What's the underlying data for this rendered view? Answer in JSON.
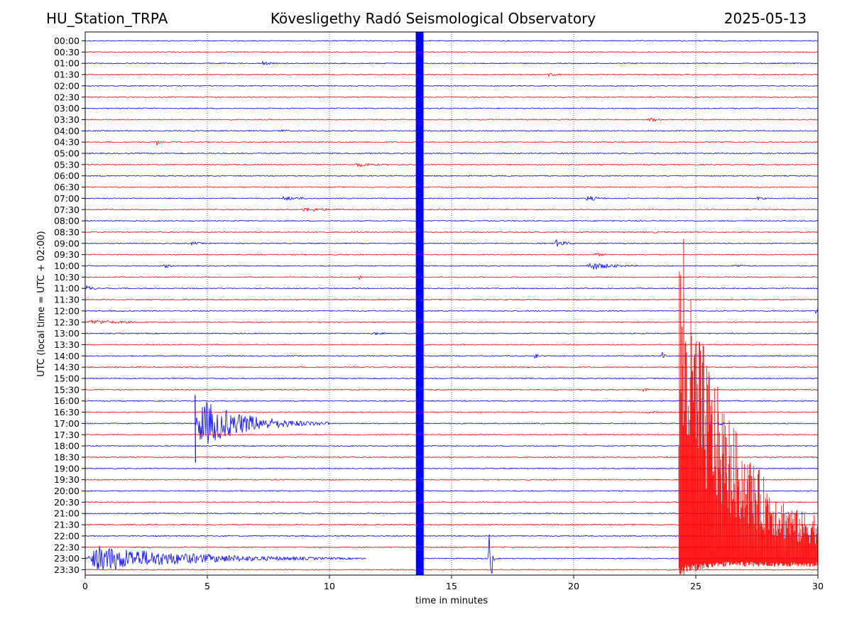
{
  "header": {
    "station": "HU_Station_TRPA",
    "observatory": "Kövesligethy Radó Seismological Observatory",
    "date": "2025-05-13"
  },
  "chart_data": {
    "type": "line",
    "xlabel": "time in minutes",
    "ylabel": "UTC (local time = UTC + 02:00)",
    "xlim": [
      0,
      30
    ],
    "x_ticks": [
      "0",
      "5",
      "10",
      "15",
      "20",
      "25",
      "30"
    ],
    "y_ticks": [
      "00:00",
      "00:30",
      "01:00",
      "01:30",
      "02:00",
      "02:30",
      "03:00",
      "03:30",
      "04:00",
      "04:30",
      "05:00",
      "05:30",
      "06:00",
      "06:30",
      "07:00",
      "07:30",
      "08:00",
      "08:30",
      "09:00",
      "09:30",
      "10:00",
      "10:30",
      "11:00",
      "11:30",
      "12:00",
      "12:30",
      "13:00",
      "13:30",
      "14:00",
      "14:30",
      "15:00",
      "15:30",
      "16:00",
      "16:30",
      "17:00",
      "17:30",
      "18:00",
      "18:30",
      "19:00",
      "19:30",
      "20:00",
      "20:30",
      "21:00",
      "21:30",
      "22:00",
      "22:30",
      "23:00",
      "23:30"
    ],
    "grid": "vertical dotted",
    "colors": {
      "even_trace": "#0000ff",
      "odd_trace": "#ff0000"
    },
    "events": [
      {
        "row": 2,
        "t": 7.2,
        "amp": 4,
        "dur": 1.0
      },
      {
        "row": 3,
        "t": 18.9,
        "amp": 5,
        "dur": 1.0
      },
      {
        "row": 7,
        "t": 23.0,
        "amp": 4,
        "dur": 1.5
      },
      {
        "row": 8,
        "t": 7.9,
        "amp": 3,
        "dur": 1.2
      },
      {
        "row": 9,
        "t": 2.9,
        "amp": 6,
        "dur": 0.2
      },
      {
        "row": 11,
        "t": 11.0,
        "amp": 4,
        "dur": 2.5
      },
      {
        "row": 14,
        "t": 8.0,
        "amp": 4,
        "dur": 2.5
      },
      {
        "row": 14,
        "t": 20.5,
        "amp": 5,
        "dur": 1.5
      },
      {
        "row": 14,
        "t": 27.5,
        "amp": 3,
        "dur": 1.0
      },
      {
        "row": 15,
        "t": 8.8,
        "amp": 4,
        "dur": 3.5
      },
      {
        "row": 17,
        "t": 23.2,
        "amp": 2,
        "dur": 1.0
      },
      {
        "row": 18,
        "t": 4.3,
        "amp": 3,
        "dur": 1.5
      },
      {
        "row": 18,
        "t": 19.2,
        "amp": 6,
        "dur": 1.5
      },
      {
        "row": 19,
        "t": 20.8,
        "amp": 3,
        "dur": 1.5
      },
      {
        "row": 20,
        "t": 3.2,
        "amp": 4,
        "dur": 1.0
      },
      {
        "row": 20,
        "t": 20.5,
        "amp": 7,
        "dur": 3.0
      },
      {
        "row": 20,
        "t": 26.5,
        "amp": 3,
        "dur": 1.5
      },
      {
        "row": 21,
        "t": 11.2,
        "amp": 5,
        "dur": 0.2
      },
      {
        "row": 22,
        "t": 0.0,
        "amp": 5,
        "dur": 1.0
      },
      {
        "row": 24,
        "t": 29.9,
        "amp": 4,
        "dur": 0.2
      },
      {
        "row": 25,
        "t": 0.0,
        "amp": 4,
        "dur": 5.0
      },
      {
        "row": 26,
        "t": 11.7,
        "amp": 3,
        "dur": 1.5
      },
      {
        "row": 28,
        "t": 18.4,
        "amp": 6,
        "dur": 0.2
      },
      {
        "row": 28,
        "t": 23.6,
        "amp": 6,
        "dur": 0.2
      },
      {
        "row": 31,
        "t": 22.8,
        "amp": 3,
        "dur": 1.0
      },
      {
        "row": 33,
        "t": 23.0,
        "amp": 3,
        "dur": 1.0
      },
      {
        "row": 34,
        "t": 4.5,
        "amp": 40,
        "dur": 5.5
      },
      {
        "row": 34,
        "t": 25.9,
        "amp": 3,
        "dur": 1.5
      },
      {
        "row": 46,
        "t": 16.5,
        "amp": 45,
        "dur": 0.3
      },
      {
        "row": 46,
        "t": 0.0,
        "amp": 22,
        "dur": 11.5
      }
    ],
    "data_gap": {
      "row": 46,
      "from": 11.5,
      "to": 13.6
    },
    "broadband_pulse": {
      "t_start": 13.55,
      "t_end": 13.85
    },
    "large_event": {
      "t_start": 24.3,
      "t_peak": 24.5,
      "rows_from": 19,
      "rows_to": 47,
      "color": "#ff0000"
    }
  }
}
